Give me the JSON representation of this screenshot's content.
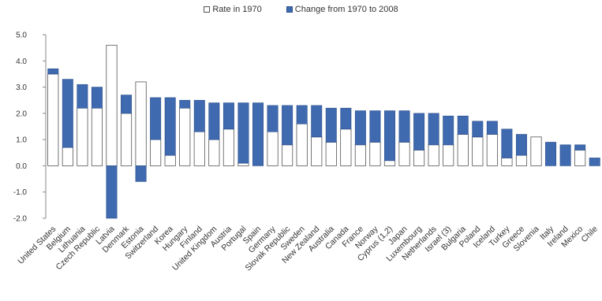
{
  "chart_data": {
    "type": "bar",
    "stacked": true,
    "legend_position": "top-center",
    "legend": {
      "rate_label": "Rate in 1970",
      "change_label": "Change from 1970 to 2008"
    },
    "colors": {
      "rate": "#ffffff",
      "change": "#3f6ab0",
      "axis": "#888888"
    },
    "ylim": [
      -2.0,
      5.0
    ],
    "yticks": [
      "5.0",
      "4.0",
      "3.0",
      "2.0",
      "1.0",
      "0.0",
      "-1.0",
      "-2.0"
    ],
    "categories": [
      "United States",
      "Belgium",
      "Lithuania",
      "Czech Republic",
      "Latvia",
      "Denmark",
      "Estonia",
      "Switzerland",
      "Korea",
      "Hungary",
      "Finland",
      "United Kingdom",
      "Austria",
      "Portugal",
      "Spain",
      "Germany",
      "Slovak Republic",
      "Sweden",
      "New Zealand",
      "Australia",
      "Canada",
      "France",
      "Norway",
      "Cyprus (1,2)",
      "Japan",
      "Luxembourg",
      "Netherlands",
      "Israel (3)",
      "Bulgaria",
      "Poland",
      "Iceland",
      "Turkey",
      "Greece",
      "Slovenia",
      "Italy",
      "Ireland",
      "Mexico",
      "Chile"
    ],
    "series": [
      {
        "name": "Rate in 1970",
        "values": [
          3.5,
          0.7,
          2.2,
          2.2,
          4.6,
          2.0,
          3.2,
          1.0,
          0.4,
          2.2,
          1.3,
          1.0,
          1.4,
          0.1,
          0.0,
          1.3,
          0.8,
          1.6,
          1.1,
          0.9,
          1.4,
          0.8,
          0.9,
          0.2,
          0.9,
          0.6,
          0.8,
          0.8,
          1.2,
          1.1,
          1.2,
          0.3,
          0.4,
          1.1,
          0.0,
          0.0,
          0.6,
          0.0
        ]
      },
      {
        "name": "Change from 1970 to 2008",
        "values": [
          0.2,
          2.6,
          0.9,
          0.8,
          -2.0,
          0.7,
          -0.6,
          1.6,
          2.2,
          0.3,
          1.2,
          1.4,
          1.0,
          2.3,
          2.4,
          1.0,
          1.5,
          0.7,
          1.2,
          1.3,
          0.8,
          1.3,
          1.2,
          1.9,
          1.2,
          1.4,
          1.2,
          1.1,
          0.7,
          0.6,
          0.5,
          1.1,
          0.8,
          0.0,
          0.9,
          0.8,
          0.2,
          0.3
        ]
      }
    ]
  }
}
